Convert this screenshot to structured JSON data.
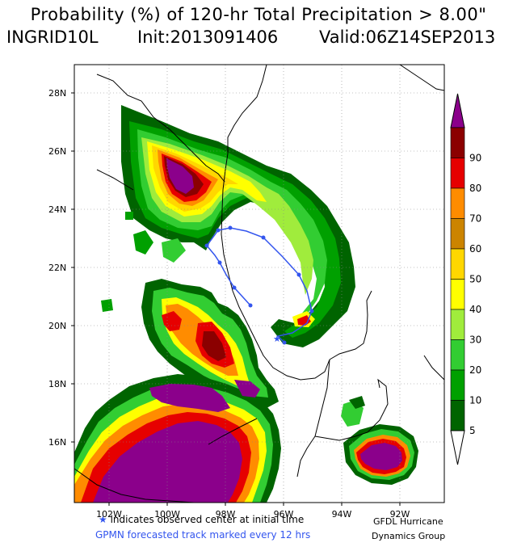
{
  "title": {
    "line1": "Probability (%) of 120-hr Total Precipitation > 8.00\"",
    "storm": "INGRID10L",
    "init": "Init:2013091406",
    "valid": "Valid:06Z14SEP2013"
  },
  "lat_labels": [
    "28N",
    "26N",
    "24N",
    "22N",
    "20N",
    "18N",
    "16N"
  ],
  "lon_labels": [
    "102W",
    "100W",
    "98W",
    "96W",
    "94W",
    "92W",
    "90W"
  ],
  "colorbar": {
    "labels": [
      "5",
      "10",
      "20",
      "30",
      "40",
      "50",
      "60",
      "70",
      "80",
      "90"
    ],
    "colors": [
      "#006400",
      "#00a000",
      "#32cd32",
      "#a0ec3c",
      "#ffff00",
      "#ffd700",
      "#cc8400",
      "#ff8c00",
      "#e60000",
      "#8b0000",
      "#8b008b"
    ]
  },
  "footer": {
    "star": "★",
    "observed": "indicates  observed center at initial time",
    "forecast": "GPMN forecasted track marked every 12 hrs",
    "credit_line1": "GFDL Hurricane",
    "credit_line2": "Dynamics Group"
  },
  "colors": {
    "track": "#3355ee",
    "land_border": "#000000",
    "grid": "#888888"
  }
}
